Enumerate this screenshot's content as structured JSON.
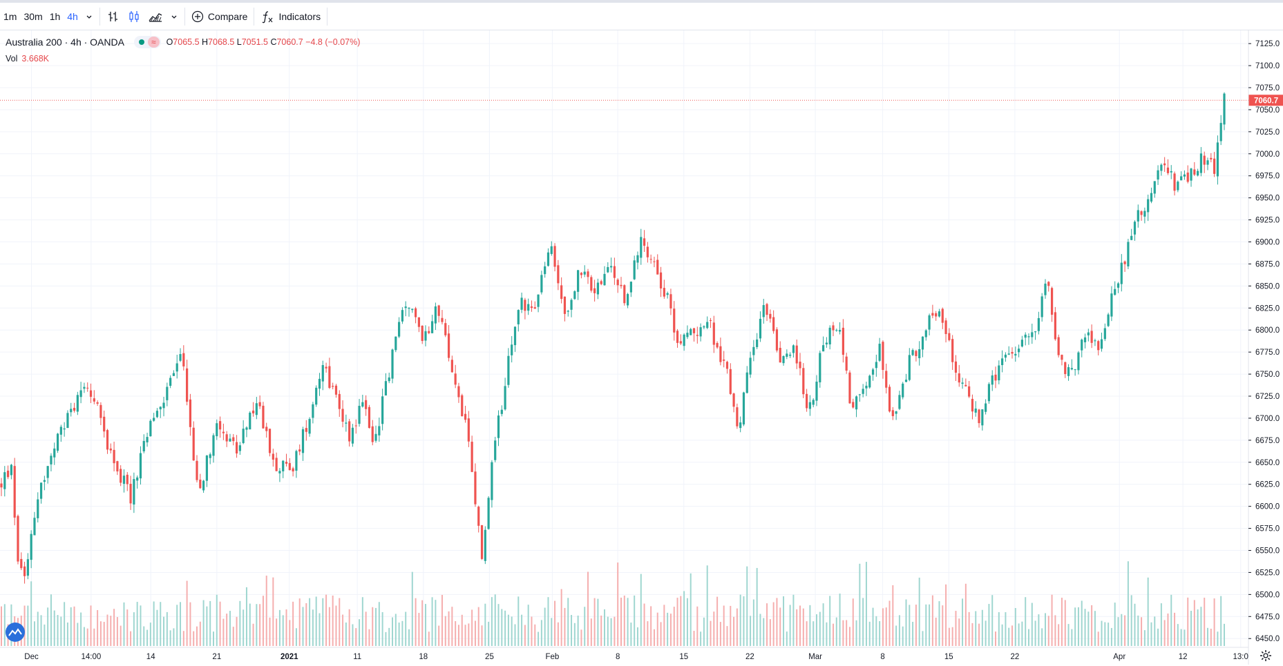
{
  "toolbar": {
    "intervals": [
      "1m",
      "30m",
      "1h",
      "4h"
    ],
    "active_interval": "4h",
    "compare_label": "Compare",
    "indicators_label": "Indicators"
  },
  "legend": {
    "symbol": "Australia 200 · 4h · OANDA",
    "o_label": "O",
    "o": "7065.5",
    "h_label": "H",
    "h": "7068.5",
    "l_label": "L",
    "l": "7051.5",
    "c_label": "C",
    "c": "7060.7",
    "change": "−4.8 (−0.07%)",
    "vol_label": "Vol",
    "vol": "3.668K"
  },
  "colors": {
    "up": "#26a69a",
    "down": "#ef5350",
    "up_vol": "#9fd6d0",
    "down_vol": "#f5aeae",
    "grid": "#f0f3fa",
    "price_tag": "#ef5350"
  },
  "icons": [
    "bar-style-icon",
    "candles-icon",
    "area-icon",
    "compare-plus-icon",
    "fx-icon",
    "tradingview-logo-icon",
    "settings-gear-icon"
  ],
  "chart_data": {
    "type": "candlestick",
    "title": "Australia 200 · 4h · OANDA",
    "ylim": [
      6440,
      7140
    ],
    "y_ticks": [
      6450,
      6475,
      6500,
      6525,
      6550,
      6575,
      6600,
      6625,
      6650,
      6675,
      6700,
      6725,
      6750,
      6775,
      6800,
      6825,
      6850,
      6875,
      6900,
      6925,
      6950,
      6975,
      7000,
      7025,
      7050,
      7075,
      7100,
      7125
    ],
    "y_tick_labels": [
      "6450.0",
      "6475.0",
      "6500.0",
      "6525.0",
      "6550.0",
      "6575.0",
      "6600.0",
      "6625.0",
      "6650.0",
      "6675.0",
      "6700.0",
      "6725.0",
      "6750.0",
      "6775.0",
      "6800.0",
      "6825.0",
      "6850.0",
      "6875.0",
      "6900.0",
      "6925.0",
      "6950.0",
      "6975.0",
      "7000.0",
      "7025.0",
      "7050.0",
      "7075.0",
      "7100.0",
      "7125.0"
    ],
    "x_tick_labels": [
      {
        "label": "Dec",
        "pos": 0.0245,
        "bold": false
      },
      {
        "label": "14:00",
        "pos": 0.071,
        "bold": false
      },
      {
        "label": "14",
        "pos": 0.1175,
        "bold": false
      },
      {
        "label": "21",
        "pos": 0.169,
        "bold": false
      },
      {
        "label": "2021",
        "pos": 0.2255,
        "bold": true
      },
      {
        "label": "11",
        "pos": 0.2785,
        "bold": false
      },
      {
        "label": "18",
        "pos": 0.33,
        "bold": false
      },
      {
        "label": "25",
        "pos": 0.3815,
        "bold": false
      },
      {
        "label": "Feb",
        "pos": 0.4305,
        "bold": false
      },
      {
        "label": "8",
        "pos": 0.4815,
        "bold": false
      },
      {
        "label": "15",
        "pos": 0.533,
        "bold": false
      },
      {
        "label": "22",
        "pos": 0.5845,
        "bold": false
      },
      {
        "label": "Mar",
        "pos": 0.6355,
        "bold": false
      },
      {
        "label": "8",
        "pos": 0.688,
        "bold": false
      },
      {
        "label": "15",
        "pos": 0.7395,
        "bold": false
      },
      {
        "label": "22",
        "pos": 0.791,
        "bold": false
      },
      {
        "label": "Apr",
        "pos": 0.8725,
        "bold": false
      },
      {
        "label": "12",
        "pos": 0.922,
        "bold": false
      },
      {
        "label": "13:0",
        "pos": 0.967,
        "bold": false
      }
    ],
    "last_price": 7060.7,
    "last_price_label": "7060.7",
    "n_candles": 370,
    "key_points": [
      [
        0,
        6625
      ],
      [
        6,
        6645
      ],
      [
        10,
        6545
      ],
      [
        14,
        6520
      ],
      [
        22,
        6610
      ],
      [
        36,
        6680
      ],
      [
        53,
        6745
      ],
      [
        68,
        6660
      ],
      [
        80,
        6610
      ],
      [
        90,
        6680
      ],
      [
        100,
        6720
      ],
      [
        112,
        6775
      ],
      [
        122,
        6610
      ],
      [
        134,
        6700
      ],
      [
        146,
        6660
      ],
      [
        158,
        6720
      ],
      [
        169,
        6650
      ],
      [
        180,
        6640
      ],
      [
        191,
        6705
      ],
      [
        199,
        6765
      ],
      [
        208,
        6720
      ],
      [
        216,
        6680
      ],
      [
        224,
        6720
      ],
      [
        231,
        6670
      ],
      [
        238,
        6735
      ],
      [
        250,
        6835
      ],
      [
        262,
        6790
      ],
      [
        270,
        6830
      ],
      [
        281,
        6740
      ],
      [
        288,
        6690
      ],
      [
        298,
        6540
      ],
      [
        305,
        6660
      ],
      [
        314,
        6760
      ],
      [
        322,
        6835
      ],
      [
        330,
        6820
      ],
      [
        340,
        6895
      ],
      [
        350,
        6815
      ],
      [
        358,
        6865
      ],
      [
        368,
        6845
      ],
      [
        378,
        6870
      ],
      [
        387,
        6830
      ],
      [
        396,
        6905
      ],
      [
        404,
        6880
      ],
      [
        412,
        6840
      ],
      [
        420,
        6785
      ],
      [
        430,
        6800
      ],
      [
        438,
        6810
      ],
      [
        449,
        6755
      ],
      [
        457,
        6690
      ],
      [
        466,
        6785
      ],
      [
        474,
        6830
      ],
      [
        483,
        6760
      ],
      [
        492,
        6780
      ],
      [
        500,
        6700
      ],
      [
        510,
        6790
      ],
      [
        519,
        6810
      ],
      [
        527,
        6710
      ],
      [
        536,
        6745
      ],
      [
        544,
        6780
      ],
      [
        553,
        6690
      ],
      [
        562,
        6760
      ],
      [
        571,
        6795
      ],
      [
        580,
        6825
      ],
      [
        589,
        6775
      ],
      [
        597,
        6730
      ],
      [
        606,
        6700
      ],
      [
        614,
        6740
      ],
      [
        622,
        6765
      ],
      [
        631,
        6780
      ],
      [
        640,
        6800
      ],
      [
        648,
        6860
      ],
      [
        656,
        6760
      ],
      [
        664,
        6750
      ],
      [
        672,
        6800
      ],
      [
        680,
        6775
      ],
      [
        688,
        6840
      ],
      [
        696,
        6880
      ],
      [
        704,
        6925
      ],
      [
        712,
        6955
      ],
      [
        720,
        6985
      ],
      [
        728,
        6965
      ],
      [
        736,
        6970
      ],
      [
        744,
        6995
      ],
      [
        752,
        6985
      ],
      [
        758,
        7060
      ]
    ]
  }
}
